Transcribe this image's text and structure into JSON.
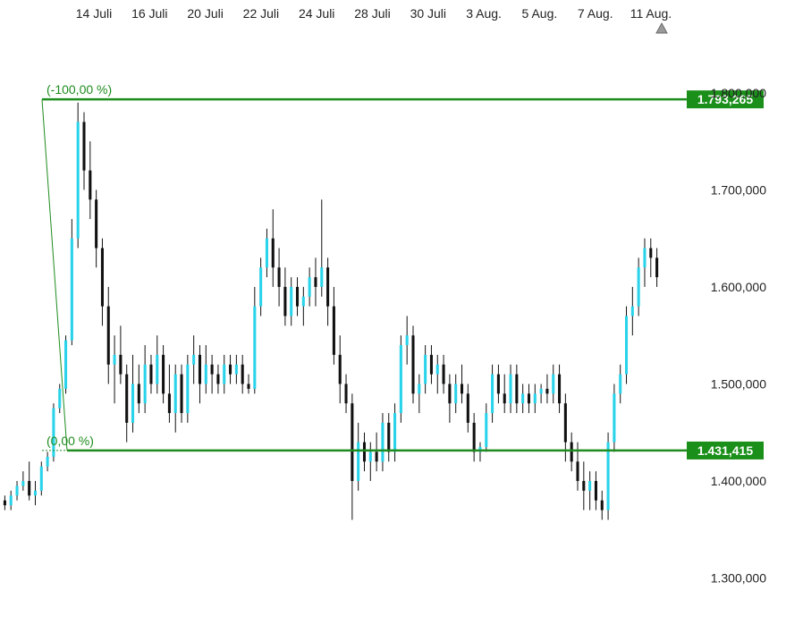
{
  "chart_data": {
    "type": "candlestick",
    "x_ticks": [
      "14 Juli",
      "16 Juli",
      "20 Juli",
      "22 Juli",
      "24 Juli",
      "28 Juli",
      "30 Juli",
      "3 Aug.",
      "5 Aug.",
      "7 Aug.",
      "11 Aug."
    ],
    "y_ticks": [
      "1.300,000",
      "1.400,000",
      "1.500,000",
      "1.600,000",
      "1.700,000",
      "1.800,000"
    ],
    "y_tick_values": [
      1.3,
      1.4,
      1.5,
      1.6,
      1.7,
      1.8
    ],
    "ylim": [
      1.26,
      1.845
    ],
    "fib_levels": [
      {
        "label": "(-100,00 %)",
        "value": 1.793265,
        "value_label": "1.793,265"
      },
      {
        "label": "(0,00 %)",
        "value": 1.431415,
        "value_label": "1.431,415"
      }
    ],
    "colors": {
      "up": "#29d3ea",
      "down": "#111111",
      "fib": "#1e8c1e",
      "fib_bg": "#1a8f1a",
      "axis_text": "#222222"
    },
    "scroll_icon": "triangle-up-icon",
    "candles": [
      [
        1.38,
        1.385,
        1.37,
        1.375
      ],
      [
        1.375,
        1.39,
        1.37,
        1.385
      ],
      [
        1.385,
        1.4,
        1.38,
        1.395
      ],
      [
        1.395,
        1.41,
        1.39,
        1.4
      ],
      [
        1.4,
        1.42,
        1.38,
        1.385
      ],
      [
        1.385,
        1.4,
        1.375,
        1.39
      ],
      [
        1.39,
        1.42,
        1.385,
        1.415
      ],
      [
        1.415,
        1.43,
        1.41,
        1.425
      ],
      [
        1.425,
        1.48,
        1.42,
        1.475
      ],
      [
        1.475,
        1.5,
        1.47,
        1.495
      ],
      [
        1.495,
        1.55,
        1.49,
        1.545
      ],
      [
        1.545,
        1.67,
        1.54,
        1.65
      ],
      [
        1.65,
        1.79,
        1.64,
        1.77
      ],
      [
        1.77,
        1.78,
        1.7,
        1.72
      ],
      [
        1.72,
        1.75,
        1.67,
        1.69
      ],
      [
        1.69,
        1.7,
        1.62,
        1.64
      ],
      [
        1.64,
        1.65,
        1.56,
        1.58
      ],
      [
        1.58,
        1.6,
        1.5,
        1.52
      ],
      [
        1.52,
        1.55,
        1.48,
        1.53
      ],
      [
        1.53,
        1.56,
        1.5,
        1.51
      ],
      [
        1.51,
        1.52,
        1.44,
        1.46
      ],
      [
        1.46,
        1.53,
        1.45,
        1.5
      ],
      [
        1.5,
        1.52,
        1.47,
        1.48
      ],
      [
        1.48,
        1.54,
        1.47,
        1.52
      ],
      [
        1.52,
        1.53,
        1.49,
        1.5
      ],
      [
        1.5,
        1.55,
        1.49,
        1.53
      ],
      [
        1.53,
        1.54,
        1.48,
        1.49
      ],
      [
        1.49,
        1.52,
        1.46,
        1.47
      ],
      [
        1.47,
        1.52,
        1.45,
        1.51
      ],
      [
        1.51,
        1.52,
        1.46,
        1.47
      ],
      [
        1.47,
        1.53,
        1.46,
        1.52
      ],
      [
        1.52,
        1.55,
        1.5,
        1.53
      ],
      [
        1.53,
        1.54,
        1.48,
        1.5
      ],
      [
        1.5,
        1.54,
        1.49,
        1.52
      ],
      [
        1.52,
        1.53,
        1.49,
        1.51
      ],
      [
        1.51,
        1.52,
        1.49,
        1.5
      ],
      [
        1.5,
        1.53,
        1.49,
        1.52
      ],
      [
        1.52,
        1.53,
        1.5,
        1.51
      ],
      [
        1.51,
        1.53,
        1.5,
        1.52
      ],
      [
        1.52,
        1.53,
        1.49,
        1.5
      ],
      [
        1.5,
        1.51,
        1.49,
        1.495
      ],
      [
        1.495,
        1.6,
        1.49,
        1.58
      ],
      [
        1.58,
        1.63,
        1.57,
        1.62
      ],
      [
        1.62,
        1.66,
        1.61,
        1.65
      ],
      [
        1.65,
        1.68,
        1.6,
        1.62
      ],
      [
        1.62,
        1.64,
        1.58,
        1.6
      ],
      [
        1.6,
        1.62,
        1.56,
        1.57
      ],
      [
        1.57,
        1.61,
        1.56,
        1.6
      ],
      [
        1.6,
        1.61,
        1.57,
        1.58
      ],
      [
        1.58,
        1.6,
        1.56,
        1.59
      ],
      [
        1.59,
        1.62,
        1.58,
        1.61
      ],
      [
        1.61,
        1.63,
        1.58,
        1.6
      ],
      [
        1.6,
        1.69,
        1.59,
        1.62
      ],
      [
        1.62,
        1.63,
        1.56,
        1.58
      ],
      [
        1.58,
        1.6,
        1.52,
        1.53
      ],
      [
        1.53,
        1.55,
        1.48,
        1.5
      ],
      [
        1.5,
        1.51,
        1.47,
        1.48
      ],
      [
        1.48,
        1.49,
        1.36,
        1.4
      ],
      [
        1.4,
        1.46,
        1.39,
        1.44
      ],
      [
        1.44,
        1.45,
        1.41,
        1.42
      ],
      [
        1.42,
        1.44,
        1.4,
        1.43
      ],
      [
        1.43,
        1.45,
        1.41,
        1.42
      ],
      [
        1.42,
        1.47,
        1.41,
        1.46
      ],
      [
        1.46,
        1.47,
        1.42,
        1.43
      ],
      [
        1.43,
        1.48,
        1.42,
        1.47
      ],
      [
        1.47,
        1.55,
        1.46,
        1.54
      ],
      [
        1.54,
        1.57,
        1.52,
        1.55
      ],
      [
        1.55,
        1.56,
        1.48,
        1.49
      ],
      [
        1.49,
        1.51,
        1.47,
        1.5
      ],
      [
        1.5,
        1.54,
        1.49,
        1.53
      ],
      [
        1.53,
        1.54,
        1.5,
        1.51
      ],
      [
        1.51,
        1.53,
        1.49,
        1.52
      ],
      [
        1.52,
        1.53,
        1.49,
        1.5
      ],
      [
        1.5,
        1.51,
        1.46,
        1.48
      ],
      [
        1.48,
        1.51,
        1.47,
        1.5
      ],
      [
        1.5,
        1.52,
        1.48,
        1.49
      ],
      [
        1.49,
        1.5,
        1.45,
        1.46
      ],
      [
        1.46,
        1.47,
        1.42,
        1.43
      ],
      [
        1.43,
        1.44,
        1.42,
        1.435
      ],
      [
        1.435,
        1.48,
        1.43,
        1.47
      ],
      [
        1.47,
        1.52,
        1.46,
        1.51
      ],
      [
        1.51,
        1.52,
        1.48,
        1.49
      ],
      [
        1.49,
        1.51,
        1.47,
        1.48
      ],
      [
        1.48,
        1.52,
        1.47,
        1.51
      ],
      [
        1.51,
        1.52,
        1.47,
        1.48
      ],
      [
        1.48,
        1.5,
        1.47,
        1.49
      ],
      [
        1.49,
        1.5,
        1.47,
        1.48
      ],
      [
        1.48,
        1.5,
        1.47,
        1.49
      ],
      [
        1.49,
        1.5,
        1.48,
        1.495
      ],
      [
        1.495,
        1.51,
        1.48,
        1.49
      ],
      [
        1.49,
        1.52,
        1.48,
        1.51
      ],
      [
        1.51,
        1.52,
        1.47,
        1.48
      ],
      [
        1.48,
        1.49,
        1.42,
        1.44
      ],
      [
        1.44,
        1.45,
        1.41,
        1.42
      ],
      [
        1.42,
        1.44,
        1.39,
        1.4
      ],
      [
        1.4,
        1.42,
        1.37,
        1.39
      ],
      [
        1.39,
        1.41,
        1.37,
        1.4
      ],
      [
        1.4,
        1.41,
        1.37,
        1.38
      ],
      [
        1.38,
        1.39,
        1.36,
        1.37
      ],
      [
        1.37,
        1.45,
        1.36,
        1.44
      ],
      [
        1.44,
        1.5,
        1.43,
        1.49
      ],
      [
        1.49,
        1.52,
        1.48,
        1.51
      ],
      [
        1.51,
        1.58,
        1.5,
        1.57
      ],
      [
        1.57,
        1.6,
        1.55,
        1.58
      ],
      [
        1.58,
        1.63,
        1.57,
        1.62
      ],
      [
        1.62,
        1.65,
        1.6,
        1.64
      ],
      [
        1.64,
        1.65,
        1.61,
        1.63
      ],
      [
        1.63,
        1.64,
        1.6,
        1.61
      ]
    ]
  }
}
